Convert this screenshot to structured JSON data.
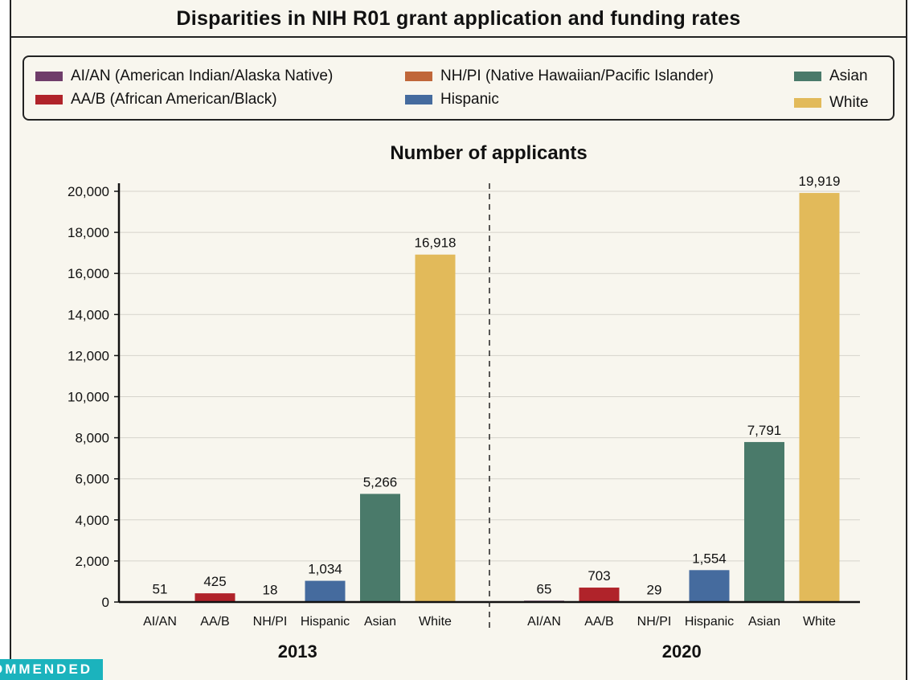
{
  "title": "Disparities in NIH R01 grant application and funding rates",
  "legend": [
    {
      "label": "AI/AN (American Indian/Alaska Native)",
      "color": "#6f3d6a"
    },
    {
      "label": "AA/B (African American/Black)",
      "color": "#b0232a"
    },
    {
      "label": "NH/PI (Native Hawaiian/Pacific Islander)",
      "color": "#c0673a"
    },
    {
      "label": "Hispanic",
      "color": "#456b9e"
    },
    {
      "label": "Asian",
      "color": "#4a7a6a"
    },
    {
      "label": "White",
      "color": "#e2ba5a"
    }
  ],
  "badge": "OMMENDED",
  "chart_data": {
    "type": "bar",
    "title": "Number of applicants",
    "categories": [
      "AI/AN",
      "AA/B",
      "NH/PI",
      "Hispanic",
      "Asian",
      "White"
    ],
    "groups": [
      {
        "name": "2013",
        "values": [
          51,
          425,
          18,
          1034,
          5266,
          16918
        ],
        "labels": [
          "51",
          "425",
          "18",
          "1,034",
          "5,266",
          "16,918"
        ]
      },
      {
        "name": "2020",
        "values": [
          65,
          703,
          29,
          1554,
          7791,
          19919
        ],
        "labels": [
          "65",
          "703",
          "29",
          "1,554",
          "7,791",
          "19,919"
        ]
      }
    ],
    "colors": [
      "#6f3d6a",
      "#b0232a",
      "#c0673a",
      "#456b9e",
      "#4a7a6a",
      "#e2ba5a"
    ],
    "ylim": [
      0,
      20000
    ],
    "yticks": [
      0,
      2000,
      4000,
      6000,
      8000,
      10000,
      12000,
      14000,
      16000,
      18000,
      20000
    ],
    "ytick_labels": [
      "0",
      "2,000",
      "4,000",
      "6,000",
      "8,000",
      "10,000",
      "12,000",
      "14,000",
      "16,000",
      "18,000",
      "20,000"
    ],
    "grid": true
  }
}
